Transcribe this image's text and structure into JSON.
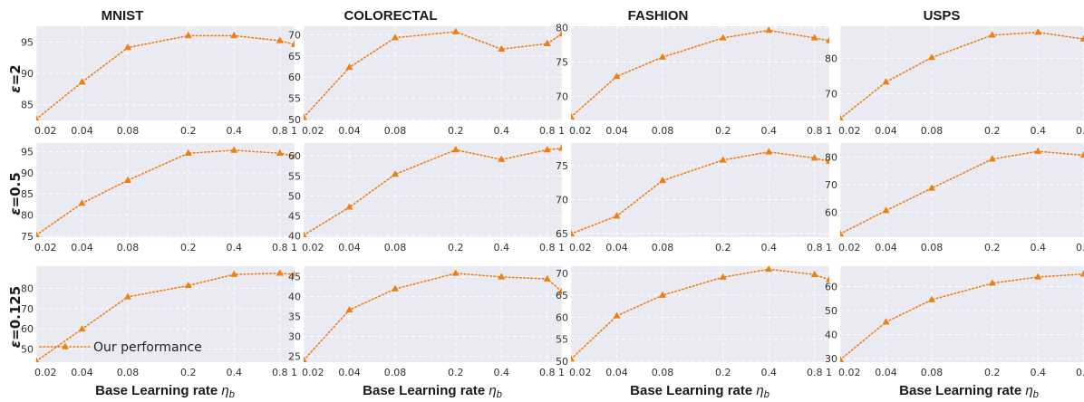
{
  "chart_data": {
    "type": "line",
    "column_titles": [
      "MNIST",
      "COLORECTAL",
      "FASHION",
      "USPS"
    ],
    "row_labels": [
      {
        "symbol": "ε",
        "value": "=2"
      },
      {
        "symbol": "ε",
        "value": "=0.5"
      },
      {
        "symbol": "ε",
        "value": "=0.125"
      }
    ],
    "xlabel_text": "Base Learning rate ",
    "xlabel_symbol": "η",
    "xlabel_sub": "b",
    "x_scale": "log",
    "x_ticks": [
      0.02,
      0.04,
      0.08,
      0.2,
      0.4,
      0.8,
      1
    ],
    "x_tick_labels": [
      "0.02",
      "0.04",
      "0.08",
      "0.2",
      "0.4",
      "0.8",
      "1"
    ],
    "xlim": [
      0.02,
      1
    ],
    "grid": true,
    "legend": {
      "label": "Our performance",
      "position": "bottom-left"
    },
    "series_color": "#f07f12",
    "panels": [
      [
        {
          "ylim": [
            82.5,
            97.5
          ],
          "yticks": [
            85,
            90,
            95
          ],
          "y": [
            82.7,
            88.6,
            94.1,
            96.0,
            96.0,
            95.2,
            94.6
          ]
        },
        {
          "ylim": [
            49.8,
            72
          ],
          "yticks": [
            50,
            55,
            60,
            65,
            70
          ],
          "y": [
            50.5,
            62.3,
            69.3,
            70.7,
            66.6,
            67.9,
            70.2
          ]
        },
        {
          "ylim": [
            66.5,
            80.2
          ],
          "yticks": [
            70,
            75,
            80
          ],
          "y": [
            67.0,
            72.9,
            75.7,
            78.5,
            79.6,
            78.5,
            78.1
          ]
        },
        {
          "ylim": [
            62.5,
            89
          ],
          "yticks": [
            70,
            80
          ],
          "y": [
            63.0,
            73.3,
            80.2,
            86.5,
            87.3,
            85.4,
            84.7
          ]
        }
      ],
      [
        {
          "ylim": [
            74.8,
            97
          ],
          "yticks": [
            75,
            80,
            85,
            90,
            95
          ],
          "y": [
            75.3,
            82.8,
            88.2,
            94.6,
            95.3,
            94.6,
            93.9
          ]
        },
        {
          "ylim": [
            39.7,
            63.2
          ],
          "yticks": [
            40,
            45,
            50,
            55,
            60
          ],
          "y": [
            40.2,
            47.2,
            55.4,
            61.5,
            59.1,
            61.5,
            61.9
          ]
        },
        {
          "ylim": [
            64.5,
            78.3
          ],
          "yticks": [
            65,
            70,
            75
          ],
          "y": [
            65.0,
            67.6,
            72.8,
            75.8,
            77.0,
            76.1,
            75.6
          ]
        },
        {
          "ylim": [
            51,
            85
          ],
          "yticks": [
            60,
            70,
            80
          ],
          "y": [
            52.2,
            60.6,
            68.7,
            79.2,
            82.0,
            80.6,
            79.2
          ]
        }
      ],
      [
        {
          "ylim": [
            43.5,
            91
          ],
          "yticks": [
            50,
            60,
            70,
            80
          ],
          "y": [
            44.0,
            59.9,
            75.8,
            81.4,
            86.9,
            87.5,
            86.9
          ]
        },
        {
          "ylim": [
            23.5,
            47.6
          ],
          "yticks": [
            25,
            30,
            35,
            40,
            45
          ],
          "y": [
            24.0,
            36.6,
            41.9,
            45.8,
            44.9,
            44.4,
            41.2
          ]
        },
        {
          "ylim": [
            49.8,
            71.6
          ],
          "yticks": [
            50,
            55,
            60,
            65,
            70
          ],
          "y": [
            50.5,
            60.3,
            65.0,
            69.1,
            70.9,
            69.7,
            68.5
          ]
        },
        {
          "ylim": [
            28.5,
            68.5
          ],
          "yticks": [
            30,
            40,
            50,
            60
          ],
          "y": [
            29.5,
            45.2,
            54.5,
            61.4,
            64.0,
            65.2,
            63.4
          ]
        }
      ]
    ]
  }
}
